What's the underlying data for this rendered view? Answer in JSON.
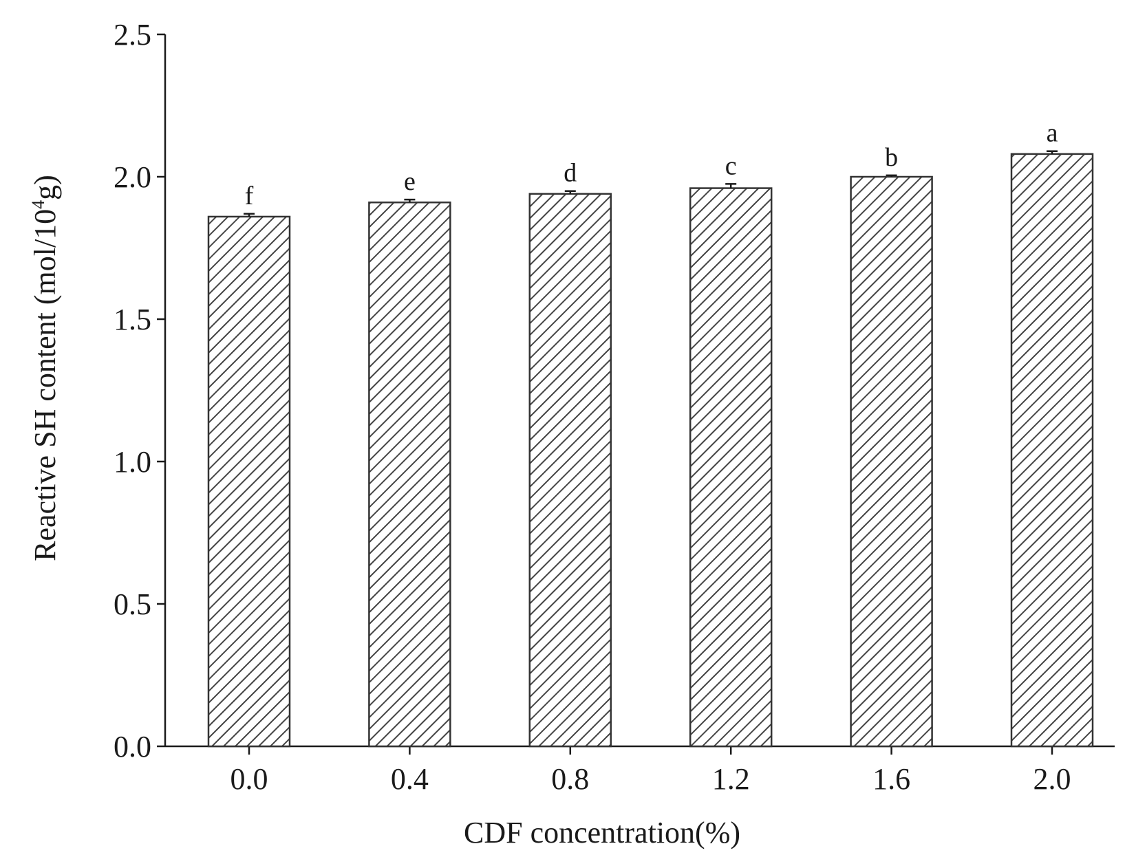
{
  "chart_data": {
    "type": "bar",
    "categories": [
      "0.0",
      "0.4",
      "0.8",
      "1.2",
      "1.6",
      "2.0"
    ],
    "values": [
      1.86,
      1.91,
      1.94,
      1.96,
      2.0,
      2.08
    ],
    "errors": [
      0.01,
      0.01,
      0.01,
      0.015,
      0.005,
      0.01
    ],
    "significance": [
      "f",
      "e",
      "d",
      "c",
      "b",
      "a"
    ],
    "xlabel": "CDF concentration(%)",
    "ylabel": "Reactive SH content (mol/10",
    "ylabel_sup": "4",
    "ylabel_end": "g)",
    "ylim": [
      0.0,
      2.5
    ],
    "yticks": [
      "0.0",
      "0.5",
      "1.0",
      "1.5",
      "2.0",
      "2.5"
    ],
    "grid": false,
    "bar_pattern": "diagonal-hatch",
    "colors": {
      "bar_stroke": "#333333",
      "hatch": "#444444",
      "axis": "#1a1a1a"
    }
  }
}
